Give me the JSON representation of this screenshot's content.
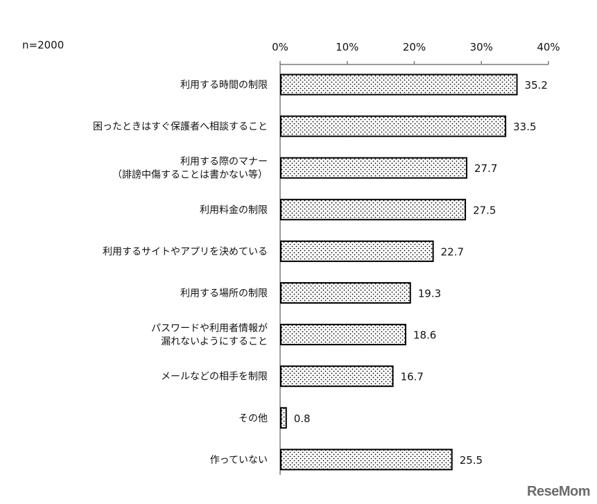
{
  "sample_label": "n=2000",
  "watermark": "ReseMom",
  "chart_data": {
    "type": "bar",
    "orientation": "horizontal",
    "categories": [
      [
        "利用する時間の制限"
      ],
      [
        "困ったときはすぐ保護者へ相談すること"
      ],
      [
        "利用する際のマナー",
        "（誹謗中傷することは書かない等）"
      ],
      [
        "利用料金の制限"
      ],
      [
        "利用するサイトやアプリを決めている"
      ],
      [
        "利用する場所の制限"
      ],
      [
        "パスワードや利用者情報が",
        "漏れないようにすること"
      ],
      [
        "メールなどの相手を制限"
      ],
      [
        "その他"
      ],
      [
        "作っていない"
      ]
    ],
    "values": [
      35.2,
      33.5,
      27.7,
      27.5,
      22.7,
      19.3,
      18.6,
      16.7,
      0.8,
      25.5
    ],
    "value_labels": [
      "35.2",
      "33.5",
      "27.7",
      "27.5",
      "22.7",
      "19.3",
      "18.6",
      "16.7",
      "0.8",
      "25.5"
    ],
    "xlim": [
      0,
      40
    ],
    "ticks": [
      "0%",
      "10%",
      "20%",
      "30%",
      "40%"
    ],
    "tick_values": [
      0,
      10,
      20,
      30,
      40
    ],
    "axis_position": "top",
    "bar_pattern": "dotted",
    "bar_fill": "#ffffff",
    "bar_stroke": "#000000",
    "dot_color": "#000000",
    "grid": false
  }
}
